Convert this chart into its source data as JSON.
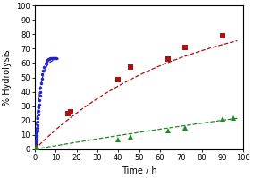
{
  "title": "",
  "xlabel": "Time / h",
  "ylabel": "% Hydrolysis",
  "xlim": [
    0,
    97
  ],
  "ylim": [
    0,
    100
  ],
  "xticks": [
    0,
    10,
    20,
    30,
    40,
    50,
    60,
    70,
    80,
    90,
    100
  ],
  "yticks": [
    0,
    10,
    20,
    30,
    40,
    50,
    60,
    70,
    80,
    90,
    100
  ],
  "ph8_data_x": [
    0.08,
    0.17,
    0.25,
    0.33,
    0.42,
    0.5,
    0.58,
    0.67,
    0.75,
    0.83,
    0.92,
    1.0,
    1.1,
    1.2,
    1.3,
    1.4,
    1.5,
    1.6,
    1.75,
    1.9,
    2.0,
    2.2,
    2.4,
    2.6,
    2.8,
    3.0,
    3.3,
    3.6,
    4.0,
    4.5,
    5.0,
    5.5,
    6.0,
    6.5,
    7.0,
    7.5,
    8.0,
    8.5,
    9.0,
    9.5,
    10.0,
    10.5
  ],
  "ph8_data_y": [
    0.5,
    1.0,
    1.8,
    2.5,
    3.2,
    4.0,
    5.0,
    6.0,
    7.0,
    8.5,
    10.0,
    11.5,
    13.0,
    15.0,
    17.0,
    19.5,
    21.5,
    24.0,
    26.5,
    29.0,
    31.0,
    34.0,
    37.0,
    40.0,
    43.0,
    46.0,
    49.0,
    52.0,
    55.0,
    57.5,
    59.5,
    61.0,
    62.0,
    62.5,
    63.0,
    63.2,
    63.5,
    63.5,
    63.5,
    63.5,
    63.5,
    63.5
  ],
  "ph8_color": "#2222cc",
  "ph8_curve_x_end": 12,
  "ph8_k": 0.42,
  "ph8_max": 63.5,
  "ph7_data_x": [
    0.5,
    16.0,
    17.0,
    40.0,
    46.0,
    64.0,
    72.0,
    90.0
  ],
  "ph7_data_y": [
    1.0,
    25.0,
    26.0,
    48.5,
    57.5,
    63.0,
    71.0,
    79.0
  ],
  "ph7_color": "#aa1111",
  "ph7_curve_x_end": 97,
  "ph7_k": 0.0145,
  "ph7_max": 100.0,
  "ph6_data_x": [
    0.5,
    1.0,
    40.0,
    46.0,
    64.0,
    72.0,
    90.0,
    95.0
  ],
  "ph6_data_y": [
    0.5,
    1.0,
    7.0,
    8.5,
    13.0,
    15.0,
    21.0,
    21.5
  ],
  "ph6_color": "#228822",
  "ph6_curve_x_end": 97,
  "ph6_k": 0.0025,
  "ph6_max": 100.0,
  "figsize": [
    2.83,
    1.99
  ],
  "dpi": 100
}
